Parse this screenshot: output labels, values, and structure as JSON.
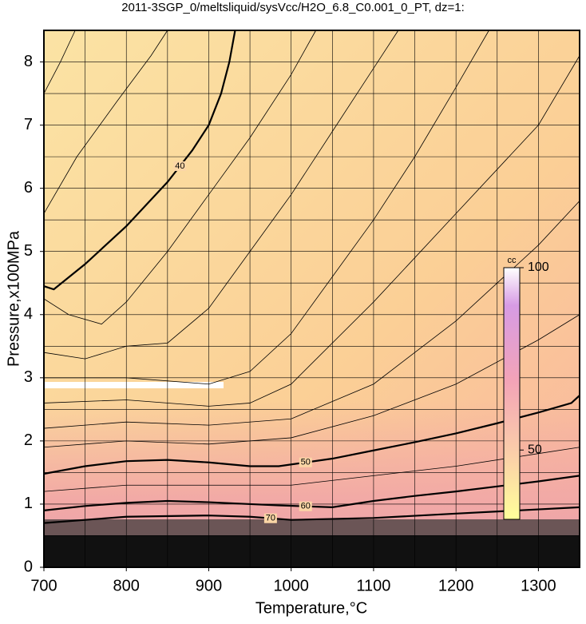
{
  "chart_data": {
    "type": "contour",
    "title": "2011-3SGP_0/meltsliquid/sysVcc/H2O_6.8_C0.001_0_PT, dz=1:",
    "x_label": "Temperature,°C",
    "y_label": "Pressure,x100MPa",
    "xlim": [
      700,
      1350
    ],
    "ylim": [
      0,
      8.5
    ],
    "xticks": [
      700,
      800,
      900,
      1000,
      1100,
      1200,
      1300
    ],
    "yticks": [
      0,
      1,
      2,
      3,
      4,
      5,
      6,
      7,
      8
    ],
    "xgrid": [
      700,
      750,
      800,
      850,
      900,
      950,
      1000,
      1050,
      1100,
      1150,
      1200,
      1250,
      1300
    ],
    "ygrid": [
      0.5,
      1,
      1.5,
      2,
      2.5,
      3,
      3.5,
      4,
      4.5,
      5,
      5.5,
      6,
      6.5,
      7,
      7.5,
      8
    ],
    "contours": [
      {
        "level": 40,
        "x": [
          700,
          712,
          750,
          800,
          850,
          880,
          900,
          915,
          925,
          932
        ],
        "y": [
          4.45,
          4.4,
          4.8,
          5.4,
          6.1,
          6.6,
          7.0,
          7.5,
          8.0,
          8.5
        ]
      },
      {
        "level": 50,
        "x": [
          700,
          750,
          800,
          850,
          900,
          950,
          985,
          1050,
          1100,
          1150,
          1200,
          1250,
          1300,
          1340,
          1350
        ],
        "y": [
          1.48,
          1.6,
          1.68,
          1.7,
          1.66,
          1.6,
          1.6,
          1.72,
          1.85,
          1.98,
          2.12,
          2.28,
          2.45,
          2.6,
          2.72
        ]
      },
      {
        "level": 60,
        "x": [
          700,
          750,
          800,
          850,
          900,
          950,
          985,
          1050,
          1100,
          1150,
          1200,
          1250,
          1300,
          1350
        ],
        "y": [
          0.9,
          0.97,
          1.02,
          1.05,
          1.03,
          1.0,
          0.98,
          0.95,
          1.05,
          1.13,
          1.2,
          1.28,
          1.36,
          1.45
        ]
      },
      {
        "level": 70,
        "x": [
          700,
          800,
          900,
          950,
          1000,
          1100,
          1200,
          1350
        ],
        "y": [
          0.7,
          0.8,
          0.82,
          0.8,
          0.75,
          0.78,
          0.85,
          0.95
        ]
      },
      {
        "x": [
          700,
          720,
          738
        ],
        "y": [
          7.5,
          8.0,
          8.5
        ]
      },
      {
        "x": [
          700,
          740,
          790,
          830,
          850
        ],
        "y": [
          5.6,
          6.5,
          7.4,
          8.1,
          8.5
        ]
      },
      {
        "x": [
          700,
          730,
          770,
          800,
          850,
          900,
          950,
          1000,
          1030
        ],
        "y": [
          4.25,
          4.0,
          3.85,
          4.2,
          5.0,
          5.9,
          6.8,
          7.8,
          8.5
        ]
      },
      {
        "x": [
          700,
          750,
          800,
          850,
          900,
          950,
          1000,
          1050,
          1100,
          1130
        ],
        "y": [
          3.4,
          3.3,
          3.5,
          3.55,
          4.1,
          5.0,
          5.9,
          6.9,
          7.9,
          8.5
        ]
      },
      {
        "x": [
          700,
          800,
          900,
          950,
          1000,
          1050,
          1100,
          1150,
          1200,
          1240
        ],
        "y": [
          3.0,
          3.0,
          2.9,
          3.1,
          3.7,
          4.6,
          5.5,
          6.5,
          7.6,
          8.5
        ]
      },
      {
        "x": [
          700,
          800,
          900,
          950,
          1000,
          1100,
          1200,
          1300,
          1350
        ],
        "y": [
          2.6,
          2.65,
          2.55,
          2.6,
          2.9,
          4.2,
          5.6,
          7.0,
          8.1
        ]
      },
      {
        "x": [
          700,
          800,
          900,
          1000,
          1100,
          1200,
          1300,
          1350
        ],
        "y": [
          2.2,
          2.3,
          2.25,
          2.35,
          2.9,
          3.9,
          5.1,
          5.8
        ]
      },
      {
        "x": [
          700,
          800,
          900,
          1000,
          1100,
          1200,
          1300,
          1350
        ],
        "y": [
          1.9,
          2.0,
          1.95,
          2.05,
          2.4,
          2.9,
          3.6,
          4.0
        ]
      },
      {
        "x": [
          700,
          800,
          900,
          1000,
          1100,
          1200,
          1300,
          1350
        ],
        "y": [
          1.2,
          1.3,
          1.3,
          1.3,
          1.45,
          1.6,
          1.8,
          1.9
        ]
      }
    ],
    "colorbar": {
      "label": "cc",
      "lim": [
        31,
        100
      ],
      "ticks": [
        50,
        100
      ]
    }
  }
}
